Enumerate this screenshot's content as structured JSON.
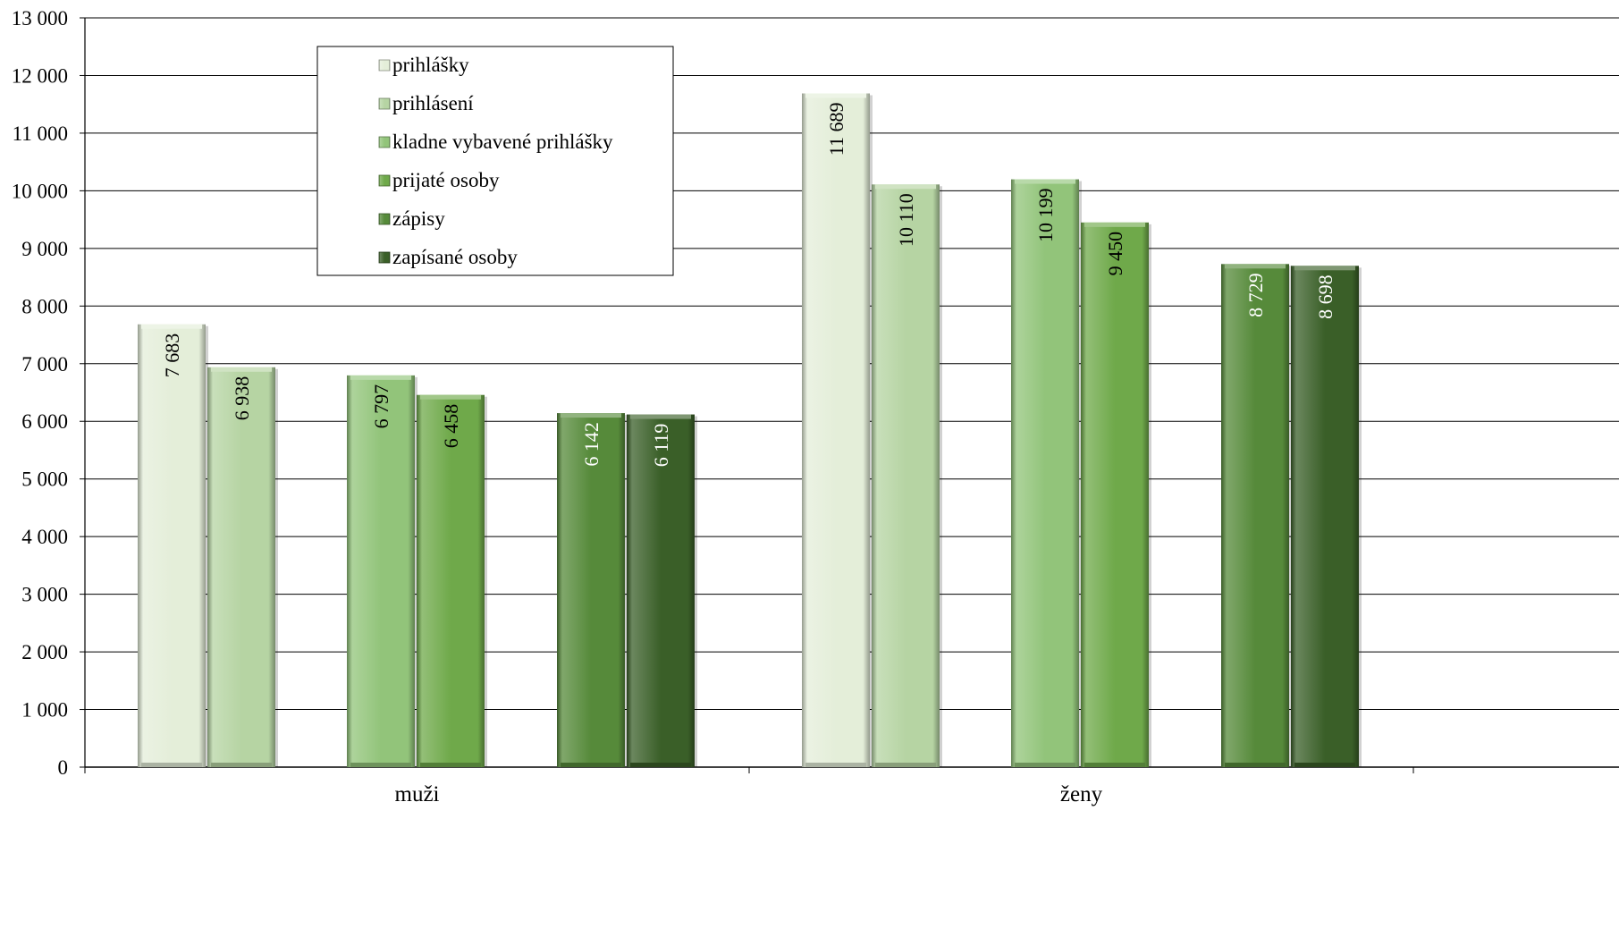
{
  "chart_data": {
    "type": "bar",
    "categories": [
      "muži",
      "ženy"
    ],
    "series": [
      {
        "name": "prihlášky",
        "values": [
          7683,
          11689
        ],
        "labels": [
          "7 683",
          "11 689"
        ],
        "color": "#e4eed9",
        "label_color": "#000000"
      },
      {
        "name": "prihlásení",
        "values": [
          6938,
          10110
        ],
        "labels": [
          "6 938",
          "10 110"
        ],
        "color": "#b6d4a3",
        "label_color": "#000000"
      },
      {
        "name": "kladne vybavené prihlášky",
        "values": [
          6797,
          10199
        ],
        "labels": [
          "6 797",
          "10 199"
        ],
        "color": "#92c47a",
        "label_color": "#000000"
      },
      {
        "name": "prijaté osoby",
        "values": [
          6458,
          9450
        ],
        "labels": [
          "6 458",
          "9 450"
        ],
        "color": "#6fa94a",
        "label_color": "#000000"
      },
      {
        "name": "zápisy",
        "values": [
          6142,
          8729
        ],
        "labels": [
          "6 142",
          "8 729"
        ],
        "color": "#568a3a",
        "label_color": "#ffffff"
      },
      {
        "name": "zapísané osoby",
        "values": [
          6119,
          8698
        ],
        "labels": [
          "6 119",
          "8 698"
        ],
        "color": "#3a5f28",
        "label_color": "#ffffff"
      }
    ],
    "y_ticks": [
      "0",
      "1 000",
      "2 000",
      "3 000",
      "4 000",
      "5 000",
      "6 000",
      "7 000",
      "8 000",
      "9 000",
      "10 000",
      "11 000",
      "12 000",
      "13 000"
    ],
    "ylim": [
      0,
      13000
    ],
    "title": "",
    "xlabel": "",
    "ylabel": "",
    "grid": true,
    "legend_position": "top-left"
  }
}
